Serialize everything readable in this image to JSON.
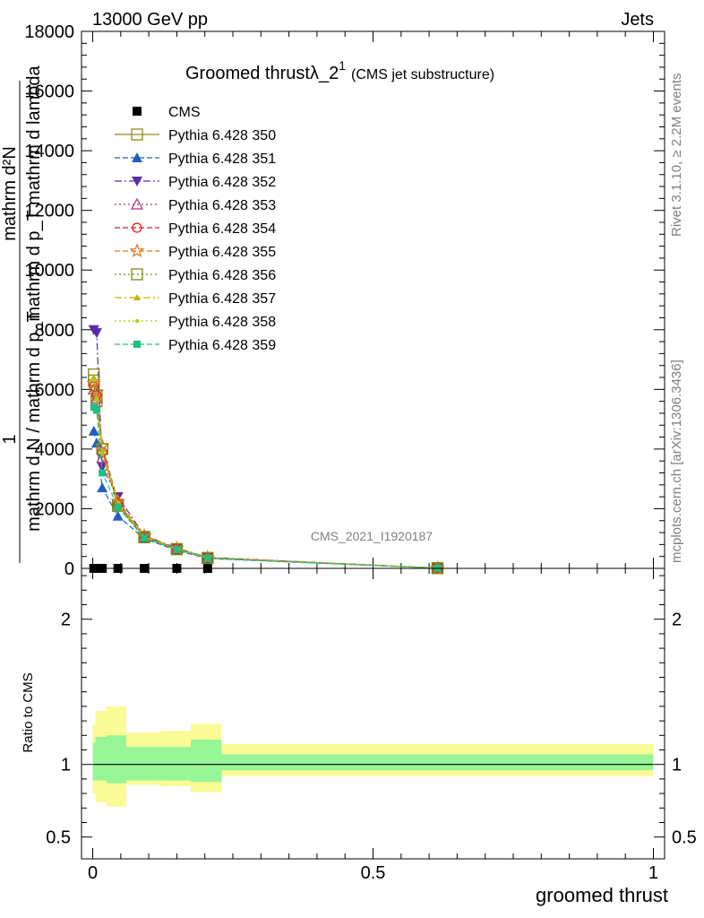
{
  "header": {
    "left": "13000 GeV pp",
    "right": "Jets",
    "side_top": "Rivet 3.1.10, ≥ 2.2M events",
    "side_bottom": "mcplots.cern.ch [arXiv:1306.3436]"
  },
  "plot": {
    "title_main": "Groomed thrustλ_2",
    "title_sup": "1",
    "title_note": "(CMS jet substructure)",
    "watermark": "CMS_2021_I1920187",
    "ylabel_frac_num_1": "mathrm d²N",
    "ylabel_frac_num_2": "mathrm d p_T mathrm d lambda",
    "ylabel_frac_left": "1",
    "ylabel_frac_den": "mathrm d N / mathrm d p_T",
    "xlabel": "groomed thrust",
    "ratio_ylabel": "Ratio to CMS"
  },
  "chart_data": [
    {
      "type": "line",
      "panel": "main",
      "xlim": [
        -0.02,
        1.02
      ],
      "ylim": [
        0,
        18000
      ],
      "y_ticks": [
        0,
        2000,
        4000,
        6000,
        8000,
        10000,
        12000,
        14000,
        16000,
        18000
      ],
      "y_tick_labels": [
        "0",
        "2000",
        "4000",
        "6000",
        "8000",
        "10000",
        "12000",
        "14000",
        "16000",
        "18000"
      ],
      "x_ticks": [
        0,
        0.5,
        1
      ],
      "legend_position": "top-left",
      "series": [
        {
          "name": "CMS",
          "marker": "square-filled",
          "line": "none",
          "color": "#000000",
          "x": [
            0.002,
            0.007,
            0.017,
            0.045,
            0.092,
            0.15,
            0.205,
            0.615
          ],
          "y": [
            0,
            0,
            0,
            0,
            0,
            0,
            0,
            0
          ]
        },
        {
          "name": "Pythia 6.428 350",
          "marker": "square-open",
          "line": "solid",
          "color": "#8b8b1a",
          "x": [
            0.002,
            0.007,
            0.017,
            0.045,
            0.092,
            0.15,
            0.205,
            0.615
          ],
          "y": [
            6300,
            5600,
            4000,
            2100,
            1050,
            650,
            350,
            10
          ]
        },
        {
          "name": "Pythia 6.428 351",
          "marker": "triangle-up-filled",
          "line": "dashed",
          "color": "#1f5fbf",
          "x": [
            0.002,
            0.007,
            0.017,
            0.045,
            0.092,
            0.15,
            0.205,
            0.615
          ],
          "y": [
            4600,
            4200,
            2700,
            1750,
            1000,
            600,
            330,
            10
          ]
        },
        {
          "name": "Pythia 6.428 352",
          "marker": "triangle-down-filled",
          "line": "dashdot",
          "color": "#5b2aa8",
          "x": [
            0.002,
            0.007,
            0.017,
            0.045,
            0.092,
            0.15,
            0.205,
            0.615
          ],
          "y": [
            8000,
            7900,
            3400,
            2400,
            1100,
            680,
            370,
            10
          ]
        },
        {
          "name": "Pythia 6.428 353",
          "marker": "triangle-up-open",
          "line": "dotted",
          "color": "#b0307a",
          "x": [
            0.002,
            0.007,
            0.017,
            0.045,
            0.092,
            0.15,
            0.205,
            0.615
          ],
          "y": [
            6000,
            5700,
            3700,
            2200,
            1080,
            660,
            360,
            10
          ]
        },
        {
          "name": "Pythia 6.428 354",
          "marker": "circle-open",
          "line": "dashed",
          "color": "#d42020",
          "x": [
            0.002,
            0.007,
            0.017,
            0.045,
            0.092,
            0.15,
            0.205,
            0.615
          ],
          "y": [
            6100,
            5800,
            3900,
            2150,
            1070,
            650,
            355,
            10
          ]
        },
        {
          "name": "Pythia 6.428 355",
          "marker": "star-open",
          "line": "dashed",
          "color": "#e8731a",
          "x": [
            0.002,
            0.007,
            0.017,
            0.045,
            0.092,
            0.15,
            0.205,
            0.615
          ],
          "y": [
            6200,
            5900,
            4100,
            2250,
            1090,
            670,
            365,
            10
          ]
        },
        {
          "name": "Pythia 6.428 356",
          "marker": "square-open",
          "line": "dotted",
          "color": "#7c8a12",
          "x": [
            0.002,
            0.007,
            0.017,
            0.045,
            0.092,
            0.15,
            0.205,
            0.615
          ],
          "y": [
            6500,
            5800,
            4000,
            2100,
            1040,
            640,
            345,
            10
          ]
        },
        {
          "name": "Pythia 6.428 357",
          "marker": "triangle-up-small",
          "line": "dashdot",
          "color": "#c8b400",
          "x": [
            0.002,
            0.007,
            0.017,
            0.045,
            0.092,
            0.15,
            0.205,
            0.615
          ],
          "y": [
            6400,
            5700,
            3950,
            2180,
            1060,
            655,
            350,
            10
          ]
        },
        {
          "name": "Pythia 6.428 358",
          "marker": "dot",
          "line": "dotted",
          "color": "#a8d000",
          "x": [
            0.002,
            0.007,
            0.017,
            0.045,
            0.092,
            0.15,
            0.205,
            0.615
          ],
          "y": [
            6300,
            5650,
            3850,
            2120,
            1050,
            645,
            348,
            10
          ]
        },
        {
          "name": "Pythia 6.428 359",
          "marker": "square-filled-small",
          "line": "dashed",
          "color": "#20c080",
          "x": [
            0.002,
            0.007,
            0.017,
            0.045,
            0.092,
            0.15,
            0.205,
            0.615
          ],
          "y": [
            5400,
            5300,
            3200,
            2050,
            1020,
            630,
            340,
            10
          ]
        }
      ]
    },
    {
      "type": "area",
      "panel": "ratio",
      "xlim": [
        -0.02,
        1.02
      ],
      "ylim": [
        0.35,
        2.35
      ],
      "y_ticks": [
        0.5,
        1,
        2
      ],
      "y_tick_labels": [
        "0.5",
        "1",
        "2"
      ],
      "x_ticks": [
        0,
        0.5,
        1
      ],
      "x_tick_labels": [
        "0",
        "0.5",
        "1"
      ],
      "reference": 1,
      "bins": [
        {
          "x0": 0.0,
          "x1": 0.005,
          "green": [
            0.89,
            1.15
          ],
          "yellow": [
            0.8,
            1.28
          ]
        },
        {
          "x0": 0.005,
          "x1": 0.025,
          "green": [
            0.89,
            1.19
          ],
          "yellow": [
            0.74,
            1.37
          ]
        },
        {
          "x0": 0.025,
          "x1": 0.06,
          "green": [
            0.87,
            1.2
          ],
          "yellow": [
            0.71,
            1.4
          ]
        },
        {
          "x0": 0.06,
          "x1": 0.12,
          "green": [
            0.89,
            1.12
          ],
          "yellow": [
            0.86,
            1.22
          ]
        },
        {
          "x0": 0.12,
          "x1": 0.175,
          "green": [
            0.89,
            1.12
          ],
          "yellow": [
            0.85,
            1.23
          ]
        },
        {
          "x0": 0.175,
          "x1": 0.23,
          "green": [
            0.88,
            1.17
          ],
          "yellow": [
            0.81,
            1.28
          ]
        },
        {
          "x0": 0.23,
          "x1": 1.0,
          "green": [
            0.96,
            1.07
          ],
          "yellow": [
            0.92,
            1.14
          ]
        }
      ]
    }
  ],
  "colors": {
    "band_green": "#96f596",
    "band_yellow": "#fafa96",
    "grey_text": "#808080"
  }
}
